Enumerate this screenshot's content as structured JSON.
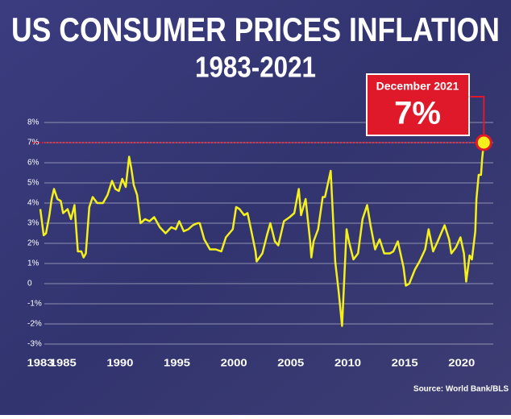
{
  "chart_data": {
    "type": "line",
    "title": "US CONSUMER PRICES INFLATION",
    "subtitle": "1983-2021",
    "source": "Source: World Bank/BLS",
    "color": "#f4f01c",
    "grid": true,
    "x": [
      1983.0,
      1983.3,
      1983.5,
      1983.8,
      1984.0,
      1984.2,
      1984.5,
      1984.8,
      1985.0,
      1985.4,
      1985.7,
      1986.0,
      1986.3,
      1986.6,
      1986.8,
      1987.0,
      1987.3,
      1987.6,
      1988.0,
      1988.5,
      1988.9,
      1989.3,
      1989.6,
      1989.9,
      1990.2,
      1990.5,
      1990.8,
      1991.0,
      1991.2,
      1991.5,
      1991.8,
      1992.2,
      1992.6,
      1993.0,
      1993.5,
      1994.0,
      1994.5,
      1994.9,
      1995.2,
      1995.6,
      1996.0,
      1996.4,
      1996.8,
      1997.0,
      1997.4,
      1997.9,
      1998.4,
      1998.9,
      1999.3,
      1999.9,
      2000.2,
      2000.5,
      2000.9,
      2001.2,
      2001.5,
      2001.9,
      2002.0,
      2002.5,
      2002.9,
      2003.2,
      2003.6,
      2003.9,
      2004.4,
      2004.9,
      2005.3,
      2005.7,
      2005.9,
      2006.3,
      2006.7,
      2006.8,
      2007.0,
      2007.4,
      2007.8,
      2008.0,
      2008.5,
      2008.9,
      2009.2,
      2009.5,
      2009.9,
      2010.1,
      2010.5,
      2010.9,
      2011.3,
      2011.7,
      2012.0,
      2012.4,
      2012.8,
      2013.2,
      2013.7,
      2014.0,
      2014.4,
      2014.9,
      2015.1,
      2015.4,
      2015.9,
      2016.3,
      2016.8,
      2017.1,
      2017.5,
      2017.9,
      2018.5,
      2018.9,
      2019.1,
      2019.5,
      2019.9,
      2020.2,
      2020.4,
      2020.7,
      2020.9,
      2021.2,
      2021.3,
      2021.5,
      2021.7,
      2021.8,
      2021.95
    ],
    "values": [
      3.7,
      2.4,
      2.5,
      3.4,
      4.2,
      4.7,
      4.2,
      4.1,
      3.5,
      3.7,
      3.2,
      3.9,
      1.6,
      1.6,
      1.3,
      1.5,
      3.8,
      4.3,
      4.0,
      4.0,
      4.4,
      5.1,
      4.7,
      4.6,
      5.2,
      4.8,
      6.3,
      5.7,
      4.9,
      4.4,
      3.0,
      3.2,
      3.1,
      3.3,
      2.8,
      2.5,
      2.8,
      2.7,
      3.1,
      2.6,
      2.7,
      2.9,
      3.0,
      3.0,
      2.2,
      1.7,
      1.7,
      1.6,
      2.3,
      2.7,
      3.8,
      3.7,
      3.4,
      3.5,
      2.7,
      1.6,
      1.1,
      1.5,
      2.4,
      3.0,
      2.1,
      1.9,
      3.1,
      3.3,
      3.5,
      4.7,
      3.4,
      4.2,
      2.1,
      1.3,
      2.1,
      2.7,
      4.3,
      4.3,
      5.6,
      1.1,
      -0.4,
      -2.1,
      2.7,
      2.1,
      1.2,
      1.5,
      3.2,
      3.9,
      2.9,
      1.7,
      2.2,
      1.5,
      1.5,
      1.6,
      2.1,
      0.8,
      -0.1,
      0.0,
      0.7,
      1.1,
      1.7,
      2.7,
      1.6,
      2.1,
      2.9,
      2.2,
      1.5,
      1.8,
      2.3,
      1.5,
      0.1,
      1.4,
      1.2,
      2.6,
      4.2,
      5.4,
      5.4,
      6.2,
      7.0
    ],
    "xlim": [
      1983,
      2022
    ],
    "xticks": [
      1983,
      1985,
      1990,
      1995,
      2000,
      2005,
      2010,
      2015,
      2020
    ],
    "ylim": [
      -3,
      8
    ],
    "yticks": [
      {
        "value": 8,
        "label": "8%"
      },
      {
        "value": 7,
        "label": "7%"
      },
      {
        "value": 6,
        "label": "6%"
      },
      {
        "value": 5,
        "label": "5%"
      },
      {
        "value": 4,
        "label": "4%"
      },
      {
        "value": 3,
        "label": "3%"
      },
      {
        "value": 2,
        "label": "2%"
      },
      {
        "value": 1,
        "label": "1%"
      },
      0,
      {
        "value": -1,
        "label": "-1%"
      },
      {
        "value": -2,
        "label": "-2%"
      },
      {
        "value": -3,
        "label": "-3%"
      }
    ],
    "annotation": {
      "label": "December 2021",
      "value": 7,
      "value_label": "7%"
    }
  }
}
